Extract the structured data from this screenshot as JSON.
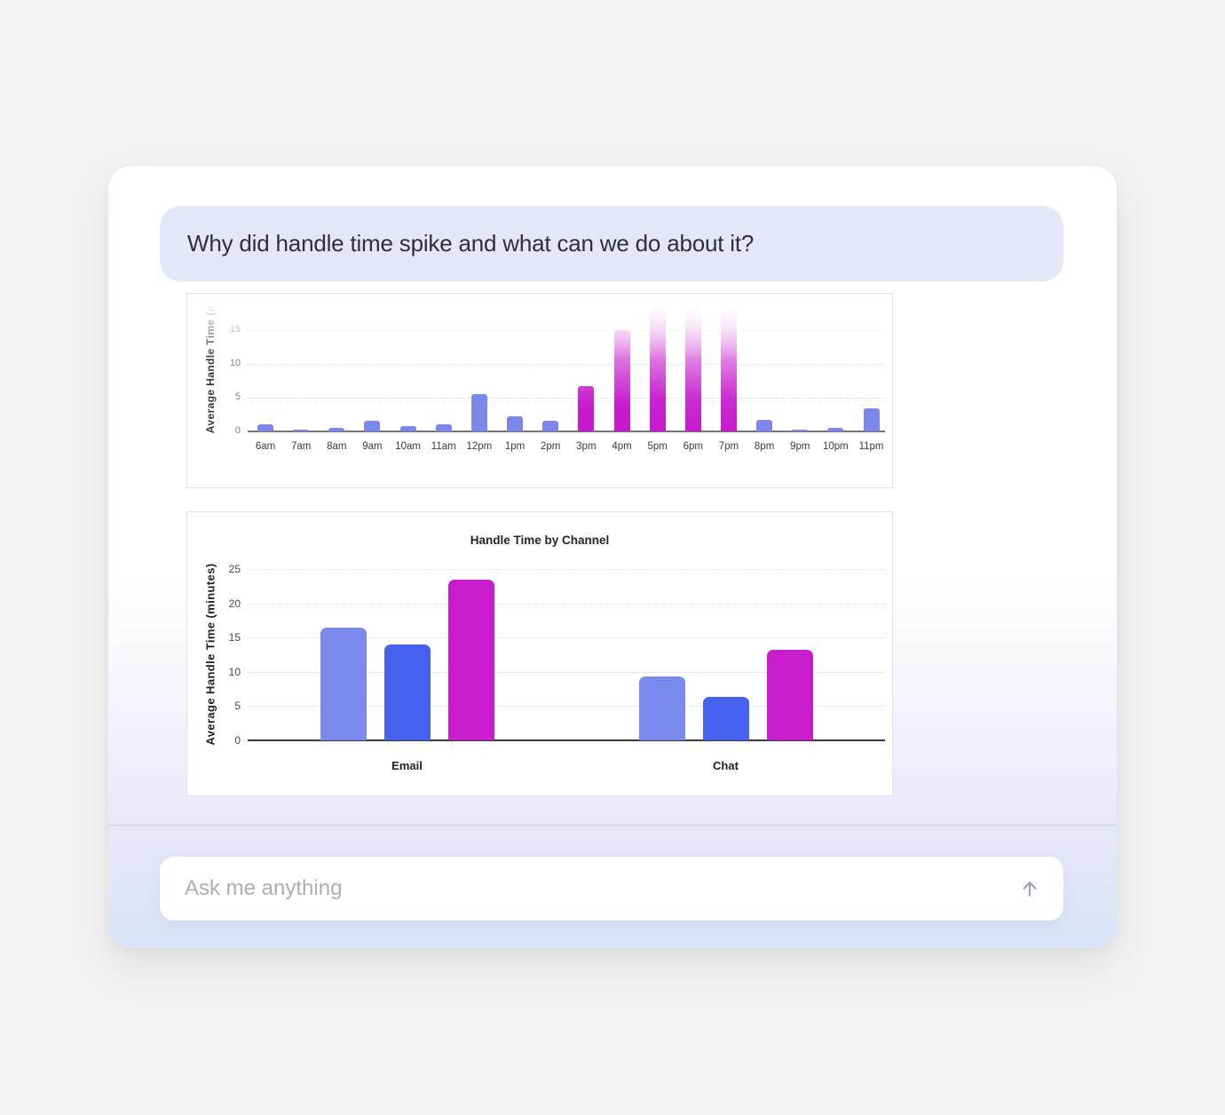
{
  "chat": {
    "question": "Why did handle time spike and what can we do about it?"
  },
  "composer": {
    "placeholder": "Ask me anything",
    "send_icon": "up-arrow-icon"
  },
  "colors": {
    "page_bg": "#f4f3f1",
    "bubble_bg": "#e4e7f8",
    "bar_blue": "#7b87ea",
    "bar_blue_dark": "#4561ee",
    "bar_magenta": "#c61bcc",
    "card_mid_lavender": "#e9e8f8",
    "card_bottom_blue": "#d8e4f8"
  },
  "chart_data": [
    {
      "type": "bar",
      "title": "",
      "xlabel": "",
      "ylabel": "Average Handle Time (minutes)",
      "categories": [
        "6am",
        "7am",
        "8am",
        "9am",
        "10am",
        "11am",
        "12pm",
        "1pm",
        "2pm",
        "3pm",
        "4pm",
        "5pm",
        "6pm",
        "7pm",
        "8pm",
        "9pm",
        "10pm",
        "11pm"
      ],
      "values": [
        1.0,
        0.2,
        0.5,
        1.6,
        0.8,
        1.0,
        5.5,
        2.2,
        1.6,
        6.7,
        15.0,
        18.3,
        22.0,
        22.0,
        1.7,
        0.2,
        0.5,
        3.4
      ],
      "highlight_categories": [
        "3pm",
        "4pm",
        "5pm",
        "6pm",
        "7pm"
      ],
      "clipped_above_axis": [
        "6pm",
        "7pm"
      ],
      "ylim": [
        0,
        20
      ],
      "yticks": [
        0,
        5,
        10,
        15,
        20
      ],
      "grid": "dotted",
      "legend": "none",
      "top_fade": true
    },
    {
      "type": "bar",
      "title": "Handle Time by Channel",
      "xlabel": "",
      "ylabel": "Average Handle Time (minutes)",
      "categories": [
        "Email",
        "Chat"
      ],
      "series": [
        {
          "name": "series-1-light-blue",
          "color": "#7b89ec",
          "values": [
            16.5,
            9.3
          ]
        },
        {
          "name": "series-2-blue",
          "color": "#4561ee",
          "values": [
            14.0,
            6.4
          ]
        },
        {
          "name": "series-3-magenta",
          "color": "#c81dcd",
          "values": [
            23.5,
            13.2
          ]
        }
      ],
      "ylim": [
        0,
        25
      ],
      "yticks": [
        0,
        5,
        10,
        15,
        20,
        25
      ],
      "grid": "dotted",
      "legend": "none"
    }
  ]
}
